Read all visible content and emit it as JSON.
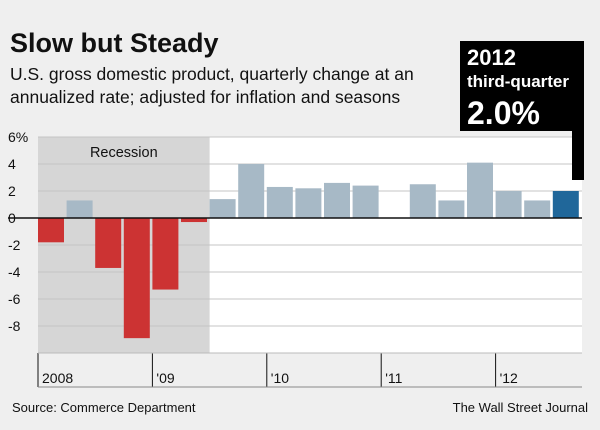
{
  "chart_data": {
    "type": "bar",
    "title": "Slow but Steady",
    "subtitle_lines": [
      "U.S. gross domestic product, quarterly change at an",
      "annualized rate; adjusted for inflation and seasons"
    ],
    "ylim": [
      -10,
      6
    ],
    "yticks": [
      "6%",
      "4",
      "2",
      "0",
      "-2",
      "-4",
      "-6",
      "-8"
    ],
    "ytick_values": [
      6,
      4,
      2,
      0,
      -2,
      -4,
      -6,
      -8
    ],
    "values": [
      -1.8,
      1.3,
      -3.7,
      -8.9,
      -5.3,
      -0.3,
      1.4,
      4.0,
      2.3,
      2.2,
      2.6,
      2.4,
      null,
      2.5,
      1.3,
      4.1,
      2.0,
      1.3,
      2.0
    ],
    "year_labels": [
      "2008",
      "'09",
      "'10",
      "'11",
      "'12"
    ],
    "recession": {
      "label": "Recession",
      "start_index": 0,
      "end_index": 5
    },
    "highlight": {
      "year": "2012",
      "label": "third-quarter",
      "value": "2.0%"
    },
    "colors": {
      "positive": "#a7b9c6",
      "negative": "#cc3333",
      "highlight": "#20679a",
      "recession_bg": "#d6d6d6",
      "plot_bg": "#ffffff",
      "callout_bg": "#000000"
    },
    "source": "Source: Commerce Department",
    "credit": "The Wall Street Journal"
  }
}
